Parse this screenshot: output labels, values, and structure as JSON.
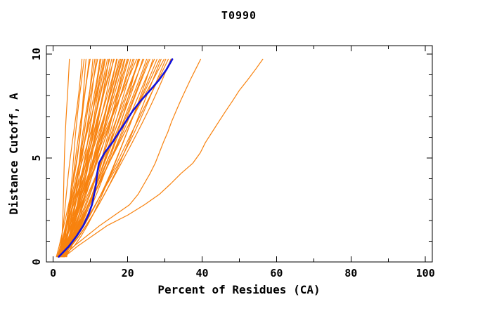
{
  "title": "T0990",
  "axes": {
    "xlabel": "Percent of Residues (CA)",
    "ylabel": "Distance Cutoff, A",
    "x_major_ticks": [
      0,
      20,
      40,
      60,
      80,
      100
    ],
    "x_minor_ticks": [
      10,
      30,
      50,
      70,
      90
    ],
    "y_major_ticks": [
      0,
      5,
      10
    ],
    "y_minor_ticks": [
      1,
      2,
      3,
      4,
      6,
      7,
      8,
      9
    ],
    "x_tick_labels": [
      "0",
      "20",
      "40",
      "60",
      "80",
      "100"
    ],
    "y_tick_labels": [
      "0",
      "5",
      "10"
    ]
  },
  "colors": {
    "model_line": "#F8820E",
    "highlight_line": "#1313DC",
    "axis": "#000000",
    "background": "#FFFFFF"
  },
  "chart_data": {
    "type": "line",
    "title": "T0990",
    "xlabel": "Percent of Residues (CA)",
    "ylabel": "Distance Cutoff, A",
    "xlim": [
      -2,
      102
    ],
    "ylim": [
      0,
      10.4
    ],
    "grid": false,
    "legend": null,
    "cutoffs": [
      0.25,
      0.75,
      1.25,
      1.75,
      2.25,
      2.75,
      3.25,
      3.75,
      4.25,
      4.75,
      5.25,
      5.75,
      6.25,
      6.75,
      7.25,
      7.75,
      8.25,
      8.75,
      9.25,
      9.75
    ],
    "highlight_model": {
      "color_key": "highlight_line",
      "percent": [
        1.5,
        4.2,
        6.3,
        8.1,
        9.4,
        10.4,
        11.0,
        11.5,
        11.8,
        12.3,
        13.8,
        15.9,
        17.7,
        19.5,
        21.3,
        23.5,
        26.0,
        28.4,
        30.4,
        32.0
      ]
    },
    "outlier_models": [
      {
        "percent": [
          2.5,
          5.5,
          9.0,
          12.5,
          16.5,
          20.5,
          22.8,
          24.4,
          26.0,
          27.4,
          28.5,
          29.6,
          30.8,
          31.8,
          33.0,
          34.2,
          35.5,
          36.8,
          38.2,
          39.6
        ]
      },
      {
        "percent": [
          3.0,
          6.5,
          10.5,
          14.5,
          20.0,
          24.5,
          28.5,
          31.5,
          34.3,
          37.5,
          39.5,
          40.9,
          42.7,
          44.5,
          46.3,
          48.2,
          50.0,
          52.2,
          54.3,
          56.3
        ]
      }
    ],
    "bundle_models": {
      "params_format": [
        "start_percent",
        "top_percent",
        "curve_power",
        "wiggle_amp",
        "wiggle_phase"
      ],
      "params": [
        [
          2.0,
          4.3,
          1.0,
          0.3,
          1.0
        ],
        [
          1.2,
          7.6,
          0.8,
          0.5,
          2.1
        ],
        [
          2.5,
          8.3,
          0.95,
          0.4,
          0.3
        ],
        [
          1.8,
          8.9,
          0.72,
          0.6,
          4.0
        ],
        [
          3.0,
          9.6,
          1.05,
          0.3,
          1.7
        ],
        [
          1.0,
          10.1,
          0.85,
          0.7,
          5.2
        ],
        [
          2.2,
          10.6,
          0.7,
          0.4,
          2.8
        ],
        [
          3.5,
          11.1,
          0.98,
          0.6,
          0.9
        ],
        [
          1.5,
          11.6,
          0.78,
          0.5,
          3.6
        ],
        [
          2.8,
          12.0,
          1.1,
          0.4,
          5.8
        ],
        [
          1.1,
          12.4,
          0.68,
          0.7,
          1.4
        ],
        [
          3.2,
          12.9,
          0.92,
          0.3,
          4.4
        ],
        [
          2.0,
          13.3,
          0.75,
          0.6,
          0.6
        ],
        [
          1.6,
          13.7,
          1.02,
          0.5,
          2.4
        ],
        [
          2.6,
          14.1,
          0.82,
          0.4,
          5.0
        ],
        [
          1.3,
          14.5,
          0.95,
          0.7,
          3.1
        ],
        [
          3.4,
          14.9,
          0.7,
          0.3,
          1.2
        ],
        [
          2.1,
          15.3,
          1.08,
          0.6,
          4.7
        ],
        [
          1.8,
          15.7,
          0.78,
          0.4,
          0.2
        ],
        [
          2.9,
          16.1,
          0.88,
          0.5,
          2.9
        ],
        [
          1.2,
          16.5,
          1.0,
          0.6,
          5.5
        ],
        [
          2.4,
          16.9,
          0.73,
          0.4,
          1.9
        ],
        [
          3.1,
          17.3,
          0.9,
          0.7,
          4.1
        ],
        [
          1.7,
          17.7,
          0.8,
          0.3,
          0.8
        ],
        [
          2.3,
          18.1,
          1.05,
          0.5,
          3.3
        ],
        [
          1.4,
          18.5,
          0.76,
          0.6,
          5.9
        ],
        [
          2.7,
          19.0,
          0.93,
          0.4,
          2.2
        ],
        [
          1.9,
          19.4,
          0.69,
          0.5,
          4.8
        ],
        [
          3.3,
          19.9,
          1.0,
          0.3,
          1.5
        ],
        [
          1.1,
          20.3,
          0.84,
          0.7,
          3.8
        ],
        [
          2.5,
          20.8,
          0.74,
          0.4,
          0.4
        ],
        [
          1.6,
          21.3,
          0.97,
          0.6,
          2.6
        ],
        [
          2.9,
          21.8,
          0.8,
          0.3,
          5.3
        ],
        [
          1.3,
          22.3,
          1.06,
          0.5,
          1.1
        ],
        [
          2.2,
          22.8,
          0.71,
          0.6,
          3.5
        ],
        [
          3.0,
          23.3,
          0.89,
          0.4,
          5.7
        ],
        [
          1.8,
          23.9,
          0.79,
          0.5,
          2.0
        ],
        [
          2.6,
          24.4,
          1.02,
          0.3,
          4.3
        ],
        [
          1.5,
          25.0,
          0.75,
          0.7,
          0.7
        ],
        [
          2.8,
          25.5,
          0.91,
          0.4,
          3.0
        ],
        [
          1.2,
          26.1,
          0.83,
          0.6,
          5.1
        ],
        [
          2.4,
          26.7,
          0.7,
          0.3,
          1.6
        ],
        [
          3.2,
          27.3,
          0.99,
          0.5,
          4.5
        ],
        [
          1.7,
          27.9,
          0.77,
          0.6,
          0.1
        ],
        [
          2.1,
          28.5,
          0.94,
          0.4,
          2.7
        ],
        [
          1.4,
          29.1,
          0.72,
          0.5,
          5.6
        ],
        [
          2.7,
          29.7,
          1.04,
          0.3,
          1.3
        ],
        [
          1.9,
          30.3,
          0.81,
          0.6,
          3.9
        ],
        [
          2.3,
          30.9,
          0.88,
          0.4,
          0.5
        ],
        [
          1.6,
          31.5,
          0.76,
          0.5,
          2.5
        ],
        [
          2.0,
          13.9,
          0.86,
          0.7,
          4.9
        ],
        [
          2.5,
          17.0,
          0.96,
          0.5,
          1.8
        ],
        [
          1.8,
          20.0,
          0.85,
          0.6,
          4.2
        ],
        [
          2.2,
          23.0,
          0.9,
          0.4,
          0.9
        ],
        [
          1.5,
          15.0,
          0.8,
          0.5,
          3.2
        ],
        [
          2.6,
          18.8,
          0.87,
          0.6,
          5.4
        ]
      ]
    }
  }
}
